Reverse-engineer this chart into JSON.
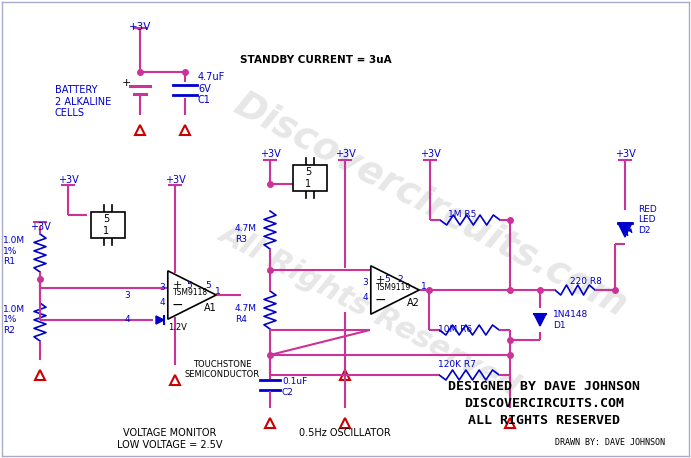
{
  "bg_color": "#ffffff",
  "wire_color": "#800080",
  "wire_color_warm": "#cc3399",
  "blue": "#0000cc",
  "red": "#cc0000",
  "dark": "#000000",
  "title_lines": [
    "DESIGNED BY DAVE JOHNSON",
    "DISCOVERCIRCUITS.COM",
    "ALL RIGHTS RESERVED"
  ],
  "drawn_by": "DRAWN BY: DAVE JOHNSON",
  "watermark1": "Discovercircuits.com",
  "watermark2": "All Rights Reserved",
  "standby": "STANDBY CURRENT = 3uA",
  "voltage_monitor": "VOLTAGE MONITOR\nLOW VOLTAGE = 2.5V",
  "oscillator": "0.5Hz OSCILLATOR",
  "battery_label": "BATTERY\n2 ALKALINE\nCELLS",
  "c1_label": "4.7uF\n6V\nC1",
  "r1_label": "1.0M\n1%\nR1",
  "r2_label": "1.0M\n1%\nR2",
  "r3_label": "4.7M\nR3",
  "r4_label": "4.7M\nR4",
  "r5_label": "1M R5",
  "r6_label": "10M R6",
  "r7_label": "120K R7",
  "r8_label": "220 R8",
  "c2_label": "0.1uF\nC2",
  "d1_label": "1N4148\nD1",
  "d2_label": "RED\nLED\nD2",
  "a1_chip": "TSM9118",
  "a1_name": "A1",
  "a2_chip": "TSM9119",
  "a2_name": "A2",
  "plus3v": "+3V",
  "v12": "1.2V",
  "pin3": "3",
  "pin4": "4",
  "pin5": "5",
  "pin1": "1",
  "pin2": "2"
}
